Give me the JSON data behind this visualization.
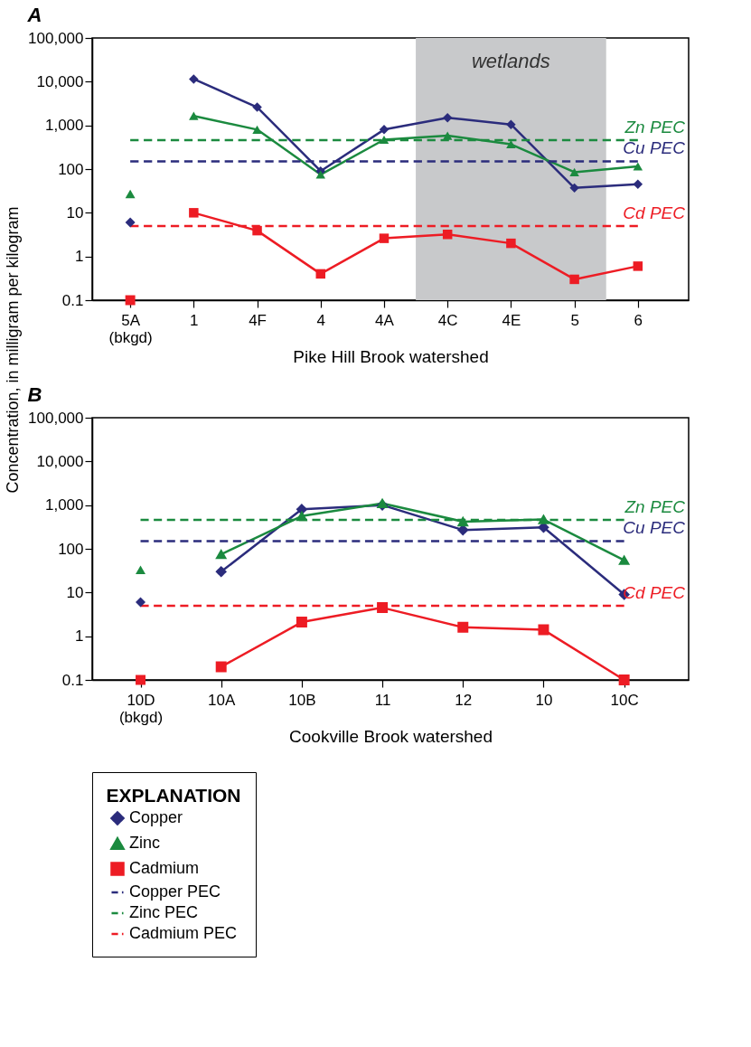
{
  "chart_data": [
    {
      "type": "line",
      "title": "A",
      "xlabel": "Pike Hill Brook watershed",
      "ylabel": "Concentration, in milligram per kilogram",
      "log": "y",
      "legend": false,
      "categories": [
        "5A (bkgd)",
        "1",
        "4F",
        "4",
        "4A",
        "4C",
        "4E",
        "5",
        "6"
      ],
      "ylim": [
        0.1,
        100000
      ],
      "yticks": [
        0.1,
        1,
        10,
        100,
        {
          "value": 1000,
          "label": "1,000"
        },
        {
          "value": 10000,
          "label": "10,000"
        },
        {
          "value": 100000,
          "label": "100,000"
        }
      ],
      "bands": [
        {
          "axis": "x",
          "from": "4C",
          "to": "5",
          "label": "wetlands",
          "color": "#c8c9cb"
        }
      ],
      "series": [
        {
          "color": "#2b2c7c",
          "marker": "diamond",
          "line_style": "solid",
          "values": [
            null,
            11500,
            2600,
            90,
            800,
            1500,
            1050,
            37,
            45
          ]
        },
        {
          "color": "#1b8a3f",
          "marker": "triangle",
          "line_style": "solid",
          "values": [
            null,
            1650,
            800,
            75,
            470,
            580,
            370,
            85,
            115
          ]
        },
        {
          "color": "#ed1c24",
          "marker": "square",
          "line_style": "solid",
          "values": [
            null,
            10,
            3.9,
            0.4,
            2.6,
            3.2,
            2,
            0.3,
            0.6
          ]
        },
        {
          "color": "#2b2c7c",
          "marker": "none",
          "line_style": "dashed",
          "values": [
            150,
            150,
            150,
            150,
            150,
            150,
            150,
            150,
            150
          ]
        },
        {
          "color": "#1b8a3f",
          "marker": "none",
          "line_style": "dashed",
          "values": [
            460,
            460,
            460,
            460,
            460,
            460,
            460,
            460,
            460
          ]
        },
        {
          "color": "#ed1c24",
          "marker": "none",
          "line_style": "dashed",
          "values": [
            5,
            5,
            5,
            5,
            5,
            5,
            5,
            5,
            5
          ]
        },
        {
          "type": "scatter",
          "color": "#2b2c7c",
          "marker": "diamond",
          "values": [
            6,
            null,
            null,
            null,
            null,
            null,
            null,
            null,
            null
          ]
        },
        {
          "type": "scatter",
          "color": "#1b8a3f",
          "marker": "triangle",
          "values": [
            27,
            null,
            null,
            null,
            null,
            null,
            null,
            null,
            null
          ]
        },
        {
          "type": "scatter",
          "color": "#ed1c24",
          "marker": "square",
          "values": [
            0.1,
            null,
            null,
            null,
            null,
            null,
            null,
            null,
            null
          ]
        }
      ],
      "annotations": [
        "Zn PEC",
        "Cu PEC",
        "Cd PEC"
      ]
    },
    {
      "type": "line",
      "title": "B",
      "xlabel": "Cookville Brook watershed",
      "log": "y",
      "legend": "bottom",
      "legend_title": "EXPLANATION",
      "categories": [
        "10D (bkgd)",
        "10A",
        "10B",
        "11",
        "12",
        "10",
        "10C"
      ],
      "ylim": [
        0.1,
        100000
      ],
      "yticks": [
        0.1,
        1,
        10,
        100,
        {
          "value": 1000,
          "label": "1,000"
        },
        {
          "value": 10000,
          "label": "10,000"
        },
        {
          "value": 100000,
          "label": "100,000"
        }
      ],
      "series": [
        {
          "name": "Copper",
          "color": "#2b2c7c",
          "marker": "diamond",
          "line_style": "solid",
          "values": [
            null,
            30,
            800,
            1000,
            270,
            310,
            9
          ]
        },
        {
          "name": "Zinc",
          "color": "#1b8a3f",
          "marker": "triangle",
          "line_style": "solid",
          "values": [
            null,
            75,
            560,
            1100,
            420,
            470,
            55
          ]
        },
        {
          "name": "Cadmium",
          "color": "#ed1c24",
          "marker": "square",
          "line_style": "solid",
          "values": [
            null,
            0.2,
            2.1,
            4.5,
            1.6,
            1.4,
            0.1
          ]
        },
        {
          "name": "Copper PEC",
          "color": "#2b2c7c",
          "marker": "none",
          "line_style": "dashed",
          "values": [
            150,
            150,
            150,
            150,
            150,
            150,
            150
          ]
        },
        {
          "name": "Zinc PEC",
          "color": "#1b8a3f",
          "marker": "none",
          "line_style": "dashed",
          "values": [
            460,
            460,
            460,
            460,
            460,
            460,
            460
          ]
        },
        {
          "name": "Cadmium PEC",
          "color": "#ed1c24",
          "marker": "none",
          "line_style": "dashed",
          "values": [
            5,
            5,
            5,
            5,
            5,
            5,
            5
          ]
        },
        {
          "type": "scatter",
          "color": "#2b2c7c",
          "marker": "diamond",
          "values": [
            6,
            null,
            null,
            null,
            null,
            null,
            null
          ]
        },
        {
          "type": "scatter",
          "color": "#1b8a3f",
          "marker": "triangle",
          "values": [
            33,
            null,
            null,
            null,
            null,
            null,
            null
          ]
        },
        {
          "type": "scatter",
          "color": "#ed1c24",
          "marker": "square",
          "values": [
            0.1,
            null,
            null,
            null,
            null,
            null,
            null
          ]
        }
      ],
      "annotations": [
        "Zn PEC",
        "Cu PEC",
        "Cd PEC"
      ]
    }
  ]
}
